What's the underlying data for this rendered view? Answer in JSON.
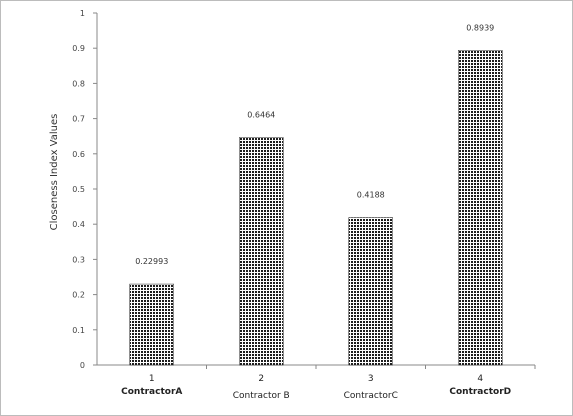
{
  "chart_data": {
    "type": "bar",
    "title": "",
    "xlabel": "",
    "ylabel": "Closeness Index Values",
    "ylim": [
      0,
      1
    ],
    "yticks": [
      0,
      0.1,
      0.2,
      0.3,
      0.4,
      0.5,
      0.6,
      0.7,
      0.8,
      0.9,
      1
    ],
    "ytick_labels": [
      "0",
      "0.1",
      "0.2",
      "0.3",
      "0.4",
      "0.5",
      "0.6",
      "0.7",
      "0.8",
      "0.9",
      "1"
    ],
    "categories": [
      "1",
      "2",
      "3",
      "4"
    ],
    "category_names": [
      "ContractorA",
      "Contractor B",
      "ContractorC",
      "ContractorD"
    ],
    "values": [
      0.22993,
      0.6464,
      0.4188,
      0.8939
    ],
    "value_labels": [
      "0.22993",
      "0.6464",
      "0.4188",
      "0.8939"
    ],
    "bar_pattern": "dotted",
    "bar_color": "#222222",
    "grid": false,
    "legend": "none"
  }
}
